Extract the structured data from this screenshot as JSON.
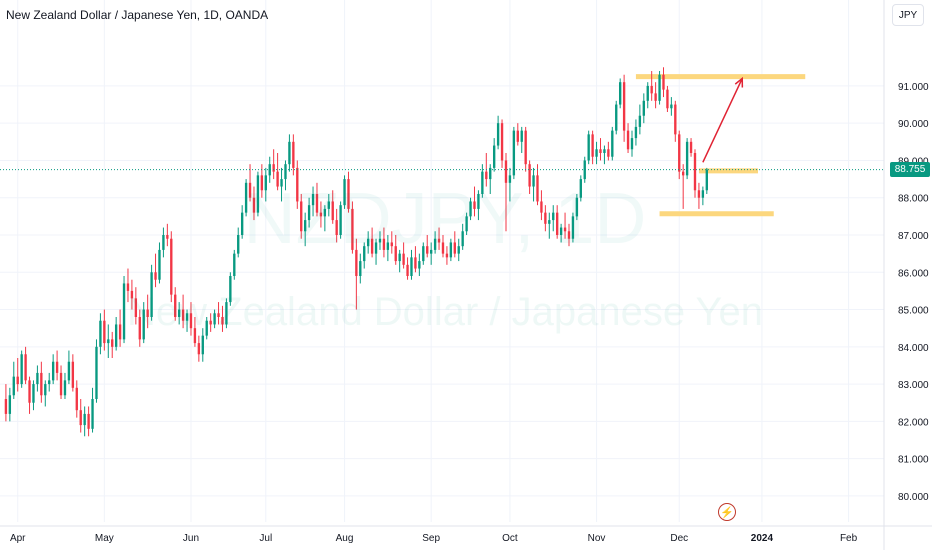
{
  "header": {
    "title": "New Zealand Dollar / Japanese Yen, 1D, OANDA",
    "currency_button": "JPY"
  },
  "watermark": {
    "symbol": "NZDJPY, 1D",
    "name": "New Zealand Dollar / Japanese Yen"
  },
  "last_price_label": "88.755",
  "colors": {
    "up": "#089981",
    "down": "#f23645",
    "level": "#fcd77e",
    "arrow": "#e02333"
  },
  "icons": [
    "bolt-icon"
  ],
  "chart_data": {
    "type": "candlestick",
    "title": "New Zealand Dollar / Japanese Yen, 1D, OANDA",
    "ylim": [
      79.3,
      92.5
    ],
    "yticks": [
      80,
      81,
      82,
      83,
      84,
      85,
      86,
      87,
      88,
      89,
      90,
      91
    ],
    "ytick_labels": [
      "80.000",
      "81.000",
      "82.000",
      "83.000",
      "84.000",
      "85.000",
      "86.000",
      "87.000",
      "88.000",
      "89.000",
      "90.000",
      "91.000"
    ],
    "xlim": [
      -1.5,
      223
    ],
    "xticks": [
      {
        "label": "Apr",
        "index": 3
      },
      {
        "label": "May",
        "index": 25
      },
      {
        "label": "Jun",
        "index": 47
      },
      {
        "label": "Jul",
        "index": 66
      },
      {
        "label": "Aug",
        "index": 86
      },
      {
        "label": "Sep",
        "index": 108
      },
      {
        "label": "Oct",
        "index": 128
      },
      {
        "label": "Nov",
        "index": 150
      },
      {
        "label": "Dec",
        "index": 171
      },
      {
        "label": "2024",
        "index": 192
      },
      {
        "label": "Feb",
        "index": 214
      }
    ],
    "last_price": 88.755,
    "candles": [
      [
        82.6,
        83.0,
        82.0,
        82.2
      ],
      [
        82.2,
        82.9,
        82.0,
        82.7
      ],
      [
        82.7,
        83.6,
        82.6,
        83.2
      ],
      [
        83.2,
        83.7,
        82.8,
        83.0
      ],
      [
        83.0,
        83.9,
        82.9,
        83.8
      ],
      [
        83.8,
        84.0,
        83.0,
        83.1
      ],
      [
        83.1,
        83.2,
        82.2,
        82.5
      ],
      [
        82.5,
        83.1,
        82.3,
        83.0
      ],
      [
        83.0,
        83.5,
        82.8,
        83.3
      ],
      [
        83.3,
        83.6,
        82.5,
        82.7
      ],
      [
        82.7,
        83.1,
        82.4,
        83.0
      ],
      [
        83.0,
        83.3,
        82.8,
        83.1
      ],
      [
        83.1,
        83.8,
        83.0,
        83.6
      ],
      [
        83.6,
        83.9,
        83.1,
        83.3
      ],
      [
        83.3,
        83.5,
        82.6,
        82.7
      ],
      [
        82.7,
        83.3,
        82.6,
        83.1
      ],
      [
        83.1,
        83.9,
        83.0,
        83.6
      ],
      [
        83.6,
        83.8,
        82.8,
        82.9
      ],
      [
        82.9,
        83.1,
        82.1,
        82.3
      ],
      [
        82.3,
        82.6,
        81.7,
        81.9
      ],
      [
        81.9,
        82.4,
        81.6,
        82.2
      ],
      [
        82.2,
        82.4,
        81.6,
        81.8
      ],
      [
        81.8,
        82.9,
        81.7,
        82.6
      ],
      [
        82.6,
        84.2,
        82.5,
        84.0
      ],
      [
        84.0,
        84.9,
        83.8,
        84.7
      ],
      [
        84.7,
        85.0,
        83.9,
        84.1
      ],
      [
        84.1,
        84.6,
        83.7,
        84.2
      ],
      [
        84.2,
        84.4,
        83.7,
        84.0
      ],
      [
        84.0,
        84.8,
        83.9,
        84.6
      ],
      [
        84.6,
        85.0,
        84.0,
        84.2
      ],
      [
        84.2,
        85.9,
        84.1,
        85.7
      ],
      [
        85.7,
        86.1,
        85.2,
        85.5
      ],
      [
        85.5,
        85.8,
        85.0,
        85.3
      ],
      [
        85.3,
        85.6,
        84.6,
        84.8
      ],
      [
        84.8,
        85.0,
        84.0,
        84.2
      ],
      [
        84.2,
        85.2,
        84.1,
        85.0
      ],
      [
        85.0,
        85.4,
        84.5,
        84.8
      ],
      [
        84.8,
        86.2,
        84.7,
        86.0
      ],
      [
        86.0,
        86.5,
        85.6,
        85.8
      ],
      [
        85.8,
        86.8,
        85.7,
        86.6
      ],
      [
        86.6,
        87.2,
        86.4,
        87.0
      ],
      [
        87.0,
        87.3,
        86.7,
        86.9
      ],
      [
        86.9,
        87.1,
        85.2,
        85.4
      ],
      [
        85.4,
        85.6,
        84.7,
        84.8
      ],
      [
        84.8,
        85.2,
        84.6,
        85.0
      ],
      [
        85.0,
        85.4,
        84.5,
        84.7
      ],
      [
        84.7,
        85.0,
        84.4,
        84.9
      ],
      [
        84.9,
        85.2,
        84.3,
        84.5
      ],
      [
        84.5,
        84.8,
        84.0,
        84.1
      ],
      [
        84.1,
        84.3,
        83.6,
        83.8
      ],
      [
        83.8,
        84.5,
        83.6,
        84.3
      ],
      [
        84.3,
        84.8,
        84.2,
        84.7
      ],
      [
        84.7,
        84.9,
        84.4,
        84.6
      ],
      [
        84.6,
        85.0,
        84.5,
        84.9
      ],
      [
        84.9,
        85.2,
        84.6,
        84.8
      ],
      [
        84.8,
        85.1,
        84.4,
        84.6
      ],
      [
        84.6,
        85.3,
        84.5,
        85.2
      ],
      [
        85.2,
        86.0,
        85.1,
        85.9
      ],
      [
        85.9,
        86.6,
        85.8,
        86.5
      ],
      [
        86.5,
        87.2,
        86.4,
        87.0
      ],
      [
        87.0,
        87.8,
        86.9,
        87.6
      ],
      [
        87.6,
        88.5,
        87.5,
        88.4
      ],
      [
        88.4,
        88.9,
        87.9,
        88.0
      ],
      [
        88.0,
        88.3,
        87.4,
        87.6
      ],
      [
        87.6,
        88.7,
        87.5,
        88.6
      ],
      [
        88.6,
        88.9,
        88.0,
        88.2
      ],
      [
        88.2,
        88.8,
        87.9,
        88.6
      ],
      [
        88.6,
        89.1,
        88.4,
        88.9
      ],
      [
        88.9,
        89.3,
        88.5,
        88.7
      ],
      [
        88.7,
        89.2,
        88.2,
        88.3
      ],
      [
        88.3,
        88.8,
        87.9,
        88.5
      ],
      [
        88.5,
        89.0,
        88.2,
        88.9
      ],
      [
        88.9,
        89.7,
        88.7,
        89.5
      ],
      [
        89.5,
        89.7,
        88.6,
        88.8
      ],
      [
        88.8,
        89.0,
        87.7,
        87.9
      ],
      [
        87.9,
        88.1,
        86.9,
        87.1
      ],
      [
        87.1,
        87.6,
        86.7,
        87.4
      ],
      [
        87.4,
        88.0,
        87.2,
        87.8
      ],
      [
        87.8,
        88.3,
        87.5,
        88.1
      ],
      [
        88.1,
        88.4,
        87.5,
        87.6
      ],
      [
        87.6,
        87.9,
        87.2,
        87.5
      ],
      [
        87.5,
        87.8,
        87.1,
        87.7
      ],
      [
        87.7,
        88.1,
        87.5,
        87.9
      ],
      [
        87.9,
        88.2,
        87.3,
        87.4
      ],
      [
        87.4,
        87.7,
        86.8,
        87.0
      ],
      [
        87.0,
        87.9,
        86.9,
        87.8
      ],
      [
        87.8,
        88.6,
        87.7,
        88.5
      ],
      [
        88.5,
        88.7,
        87.6,
        87.7
      ],
      [
        87.7,
        87.9,
        86.5,
        86.6
      ],
      [
        86.6,
        86.9,
        85.0,
        85.9
      ],
      [
        85.9,
        86.5,
        85.7,
        86.3
      ],
      [
        86.3,
        86.8,
        86.1,
        86.7
      ],
      [
        86.7,
        87.1,
        86.5,
        86.9
      ],
      [
        86.9,
        87.2,
        86.4,
        86.5
      ],
      [
        86.5,
        86.9,
        86.2,
        86.8
      ],
      [
        86.8,
        87.1,
        86.6,
        86.9
      ],
      [
        86.9,
        87.2,
        86.4,
        86.6
      ],
      [
        86.6,
        87.0,
        86.3,
        86.8
      ],
      [
        86.8,
        87.1,
        86.5,
        86.7
      ],
      [
        86.7,
        87.0,
        86.2,
        86.3
      ],
      [
        86.3,
        86.6,
        86.0,
        86.5
      ],
      [
        86.5,
        86.8,
        86.1,
        86.2
      ],
      [
        86.2,
        86.4,
        85.8,
        85.9
      ],
      [
        85.9,
        86.6,
        85.8,
        86.4
      ],
      [
        86.4,
        86.7,
        86.0,
        86.1
      ],
      [
        86.1,
        86.5,
        85.9,
        86.3
      ],
      [
        86.3,
        86.8,
        86.2,
        86.7
      ],
      [
        86.7,
        87.0,
        86.4,
        86.5
      ],
      [
        86.5,
        86.8,
        86.2,
        86.6
      ],
      [
        86.6,
        87.1,
        86.5,
        86.9
      ],
      [
        86.9,
        87.2,
        86.6,
        86.8
      ],
      [
        86.8,
        87.0,
        86.4,
        86.5
      ],
      [
        86.5,
        86.7,
        86.2,
        86.4
      ],
      [
        86.4,
        86.9,
        86.3,
        86.8
      ],
      [
        86.8,
        87.1,
        86.4,
        86.5
      ],
      [
        86.5,
        86.9,
        86.3,
        86.7
      ],
      [
        86.7,
        87.3,
        86.6,
        87.1
      ],
      [
        87.1,
        87.6,
        87.0,
        87.5
      ],
      [
        87.5,
        88.0,
        87.4,
        87.9
      ],
      [
        87.9,
        88.3,
        87.5,
        87.7
      ],
      [
        87.7,
        88.2,
        87.4,
        88.1
      ],
      [
        88.1,
        88.9,
        88.0,
        88.7
      ],
      [
        88.7,
        89.2,
        88.3,
        88.5
      ],
      [
        88.5,
        88.9,
        88.1,
        88.8
      ],
      [
        88.8,
        89.6,
        88.7,
        89.4
      ],
      [
        89.4,
        90.2,
        89.3,
        90.0
      ],
      [
        90.0,
        90.1,
        88.8,
        89.0
      ],
      [
        89.0,
        89.2,
        87.1,
        88.4
      ],
      [
        88.4,
        88.8,
        87.9,
        88.6
      ],
      [
        88.6,
        89.9,
        88.5,
        89.8
      ],
      [
        89.8,
        90.0,
        89.4,
        89.5
      ],
      [
        89.5,
        89.9,
        89.2,
        89.8
      ],
      [
        89.8,
        89.9,
        88.7,
        88.9
      ],
      [
        88.9,
        89.0,
        88.1,
        88.3
      ],
      [
        88.3,
        88.8,
        87.9,
        88.6
      ],
      [
        88.6,
        88.9,
        87.8,
        87.9
      ],
      [
        87.9,
        88.2,
        87.4,
        87.6
      ],
      [
        87.6,
        87.8,
        87.1,
        87.3
      ],
      [
        87.3,
        87.6,
        86.9,
        87.4
      ],
      [
        87.4,
        87.8,
        87.1,
        87.6
      ],
      [
        87.6,
        87.8,
        86.9,
        87.0
      ],
      [
        87.0,
        87.3,
        86.8,
        87.2
      ],
      [
        87.2,
        87.6,
        86.9,
        87.1
      ],
      [
        87.1,
        87.3,
        86.7,
        86.9
      ],
      [
        86.9,
        87.6,
        86.8,
        87.5
      ],
      [
        87.5,
        88.1,
        87.4,
        88.0
      ],
      [
        88.0,
        88.6,
        87.9,
        88.5
      ],
      [
        88.5,
        89.1,
        88.4,
        89.0
      ],
      [
        89.0,
        89.8,
        88.9,
        89.7
      ],
      [
        89.7,
        89.8,
        88.9,
        89.1
      ],
      [
        89.1,
        89.5,
        88.9,
        89.3
      ],
      [
        89.3,
        89.6,
        89.0,
        89.2
      ],
      [
        89.2,
        89.4,
        88.9,
        89.3
      ],
      [
        89.3,
        89.5,
        89.0,
        89.1
      ],
      [
        89.1,
        89.9,
        89.0,
        89.8
      ],
      [
        89.8,
        90.6,
        89.7,
        90.5
      ],
      [
        90.5,
        91.2,
        90.4,
        91.1
      ],
      [
        91.1,
        91.3,
        89.5,
        89.8
      ],
      [
        89.8,
        90.0,
        89.2,
        89.3
      ],
      [
        89.3,
        89.8,
        89.1,
        89.6
      ],
      [
        89.6,
        90.1,
        89.4,
        89.9
      ],
      [
        89.9,
        90.5,
        89.7,
        90.2
      ],
      [
        90.2,
        90.8,
        90.0,
        90.6
      ],
      [
        90.6,
        91.1,
        90.4,
        91.0
      ],
      [
        91.0,
        91.4,
        90.6,
        90.8
      ],
      [
        90.8,
        91.1,
        90.4,
        90.6
      ],
      [
        90.6,
        91.4,
        90.5,
        91.3
      ],
      [
        91.3,
        91.5,
        90.7,
        90.9
      ],
      [
        90.9,
        91.0,
        90.3,
        90.4
      ],
      [
        90.4,
        90.7,
        90.2,
        90.5
      ],
      [
        90.5,
        90.6,
        89.5,
        89.7
      ],
      [
        89.7,
        89.8,
        88.5,
        88.7
      ],
      [
        88.7,
        88.9,
        87.7,
        88.6
      ],
      [
        88.6,
        89.6,
        88.5,
        89.5
      ],
      [
        89.5,
        89.6,
        89.1,
        89.2
      ],
      [
        89.2,
        89.3,
        88.0,
        88.2
      ],
      [
        88.2,
        88.4,
        87.7,
        88.0
      ],
      [
        88.0,
        88.3,
        87.8,
        88.2
      ],
      [
        88.2,
        88.8,
        88.1,
        88.755
      ]
    ],
    "annotations": [
      {
        "type": "level",
        "y": 91.25,
        "x_start": 160,
        "x_end": 203
      },
      {
        "type": "level",
        "y": 88.72,
        "x_start": 176,
        "x_end": 191
      },
      {
        "type": "level",
        "y": 87.57,
        "x_start": 166,
        "x_end": 195
      },
      {
        "type": "arrow",
        "x1": 177,
        "y1": 88.95,
        "x2": 187,
        "y2": 91.2
      }
    ]
  }
}
